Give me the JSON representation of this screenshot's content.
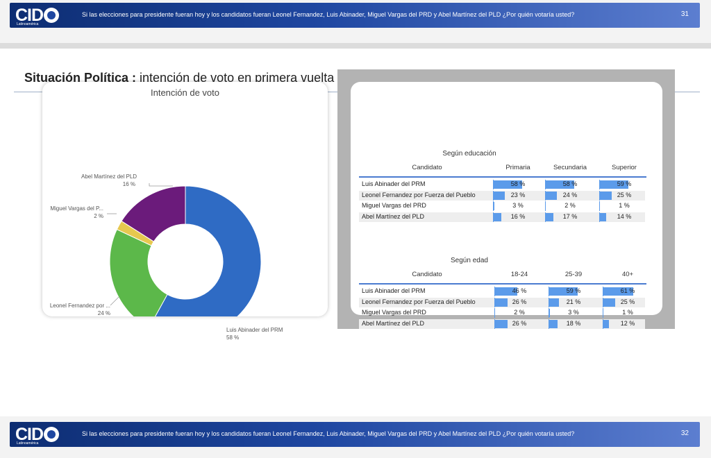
{
  "header": {
    "logo_text": "CID",
    "logo_sub": "Latinoamérica",
    "question": "Si las elecciones para presidente fueran hoy y los candidatos fueran Leonel Fernandez, Luis Abinader, Miguel Vargas del PRD y Abel Martínez del PLD ¿Por quién votaría usted?",
    "page_number": "31"
  },
  "footer": {
    "logo_text": "CID",
    "logo_sub": "Latinoamérica",
    "question": "Si las elecciones para presidente fueran hoy y los candidatos fueran Leonel Fernandez, Luis Abinader, Miguel Vargas del PRD y Abel Martínez del PLD ¿Por quién votaría usted?",
    "page_number": "32"
  },
  "slide": {
    "title_bold": "Situación Política :",
    "title_rest": " intención de voto en primera vuelta (voto válido)"
  },
  "colors": {
    "prm": "#2f6bc4",
    "fp": "#5cb84a",
    "prd": "#e6c84f",
    "pld": "#6b1b7b",
    "bar": "#5b9bea",
    "banner": "#1f47a1"
  },
  "chart_data": [
    {
      "type": "pie",
      "title": "Intención de voto",
      "labels": [
        "Luis Abinader del PRM",
        "Leonel Fernandez por ...",
        "Miguel Vargas del P...",
        "Abel Martínez del PLD"
      ],
      "values": [
        58,
        24,
        2,
        16
      ],
      "value_labels": [
        "58 %",
        "24 %",
        "2 %",
        "16 %"
      ]
    },
    {
      "type": "table",
      "title": "Según educación",
      "header_label": "Candidato",
      "columns": [
        "Primaria",
        "Secundaria",
        "Superior"
      ],
      "rows": [
        {
          "label": "Luis Abinader del PRM",
          "values": [
            58,
            58,
            59
          ],
          "texts": [
            "58 %",
            "58 %",
            "59 %"
          ]
        },
        {
          "label": "Leonel Fernandez por Fuerza del Pueblo",
          "values": [
            23,
            24,
            25
          ],
          "texts": [
            "23 %",
            "24 %",
            "25 %"
          ]
        },
        {
          "label": "Miguel Vargas del PRD",
          "values": [
            3,
            2,
            1
          ],
          "texts": [
            "3 %",
            "2 %",
            "1 %"
          ]
        },
        {
          "label": "Abel Martínez del PLD",
          "values": [
            16,
            17,
            14
          ],
          "texts": [
            "16 %",
            "17 %",
            "14 %"
          ]
        }
      ]
    },
    {
      "type": "table",
      "title": "Según edad",
      "header_label": "Candidato",
      "columns": [
        "18-24",
        "25-39",
        "40+"
      ],
      "rows": [
        {
          "label": "Luis Abinader del PRM",
          "values": [
            46,
            59,
            61
          ],
          "texts": [
            "46 %",
            "59 %",
            "61 %"
          ]
        },
        {
          "label": "Leonel Fernandez por Fuerza del Pueblo",
          "values": [
            26,
            21,
            25
          ],
          "texts": [
            "26 %",
            "21 %",
            "25 %"
          ]
        },
        {
          "label": "Miguel Vargas del PRD",
          "values": [
            2,
            3,
            1
          ],
          "texts": [
            "2 %",
            "3 %",
            "1 %"
          ]
        },
        {
          "label": "Abel Martínez del PLD",
          "values": [
            26,
            18,
            12
          ],
          "texts": [
            "26 %",
            "18 %",
            "12 %"
          ]
        }
      ]
    }
  ]
}
